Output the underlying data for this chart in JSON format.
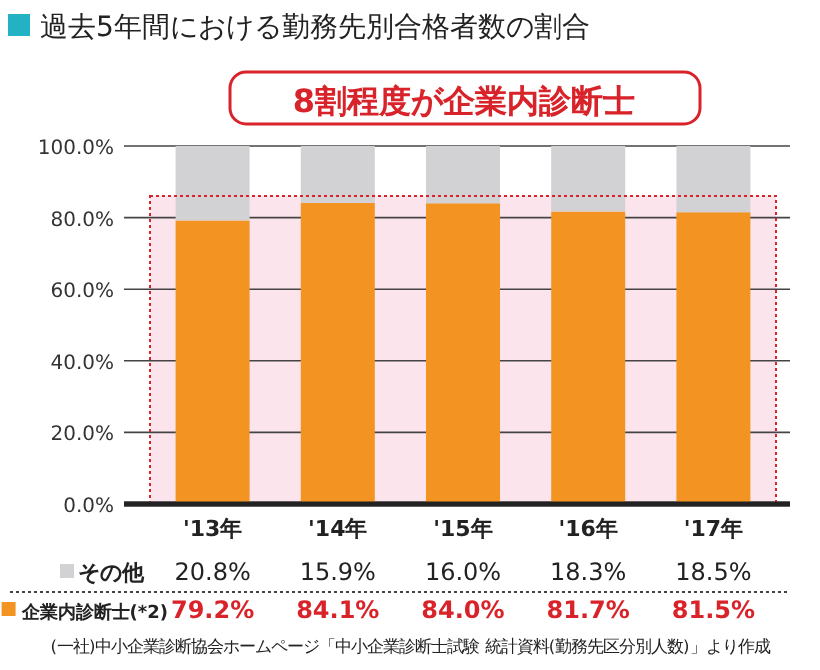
{
  "chart_data": {
    "type": "bar",
    "title": "過去5年間における勤務先別合格者数の割合",
    "annotations": [
      "8割程度が企業内診断士",
      "(一社)中小企業診断協会ホームページ「中小企業診断士試験 統計資料(勤務先区分別人数)」より作成"
    ],
    "categories": [
      "'13年",
      "'14年",
      "'15年",
      "'16年",
      "'17年"
    ],
    "stacked": true,
    "series": [
      {
        "name": "企業内診断士(*2)",
        "color": "#f39321",
        "values": [
          79.2,
          84.1,
          84.0,
          81.7,
          81.5
        ],
        "value_labels": [
          "79.2%",
          "84.1%",
          "84.0%",
          "81.7%",
          "81.5%"
        ]
      },
      {
        "name": "その他",
        "color": "#d2d2d4",
        "values": [
          20.8,
          15.9,
          16.0,
          18.3,
          18.5
        ],
        "value_labels": [
          "20.8%",
          "15.9%",
          "16.0%",
          "18.3%",
          "18.5%"
        ]
      }
    ],
    "ylim": [
      0,
      100
    ],
    "yticks": [
      {
        "value": 0,
        "label": "0.0%"
      },
      {
        "value": 20,
        "label": "20.0%"
      },
      {
        "value": 40,
        "label": "40.0%"
      },
      {
        "value": 60,
        "label": "60.0%"
      },
      {
        "value": 80,
        "label": "80.0%"
      },
      {
        "value": 100,
        "label": "100.0%"
      }
    ],
    "grid": "y",
    "legend": "bottom left",
    "bands": [
      {
        "axis": "y",
        "from": 0,
        "to": 86,
        "color": "#fce4ec"
      }
    ]
  }
}
